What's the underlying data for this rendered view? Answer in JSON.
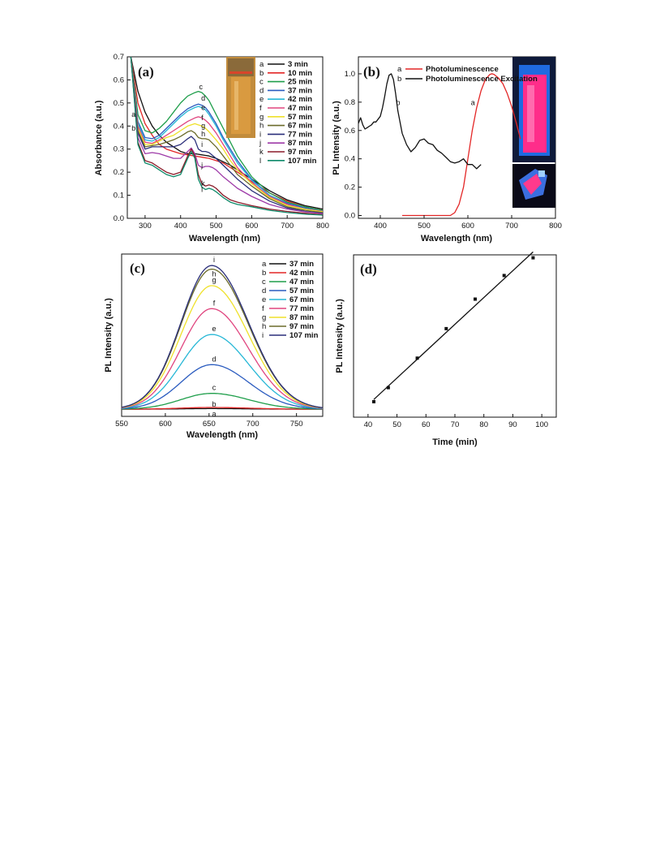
{
  "chart_data": [
    {
      "panel": "(a)",
      "type": "line",
      "xlabel": "Wavelength (nm)",
      "ylabel": "Absorbance (a.u.)",
      "xlim": [
        250,
        800
      ],
      "ylim": [
        0,
        0.7
      ],
      "xticks": [
        300,
        400,
        500,
        600,
        700,
        800
      ],
      "yticks": [
        0.0,
        0.1,
        0.2,
        0.3,
        0.4,
        0.5,
        0.6,
        0.7
      ],
      "legend_position": "top-right",
      "series": [
        {
          "letter": "a",
          "name": "3 min",
          "color": "#111111",
          "x": [
            260,
            280,
            300,
            320,
            340,
            360,
            380,
            400,
            420,
            440,
            460,
            480,
            500,
            520,
            540,
            560,
            600,
            650,
            700,
            750,
            800
          ],
          "y": [
            0.7,
            0.55,
            0.46,
            0.4,
            0.36,
            0.33,
            0.31,
            0.29,
            0.28,
            0.28,
            0.275,
            0.27,
            0.26,
            0.245,
            0.23,
            0.21,
            0.17,
            0.12,
            0.08,
            0.055,
            0.04
          ]
        },
        {
          "letter": "b",
          "name": "10 min",
          "color": "#e32626",
          "x": [
            260,
            280,
            300,
            320,
            340,
            360,
            380,
            400,
            420,
            440,
            460,
            480,
            500,
            520,
            540,
            560,
            600,
            650,
            700,
            750,
            800
          ],
          "y": [
            0.7,
            0.5,
            0.41,
            0.36,
            0.32,
            0.3,
            0.29,
            0.28,
            0.275,
            0.27,
            0.265,
            0.26,
            0.25,
            0.24,
            0.22,
            0.2,
            0.16,
            0.11,
            0.075,
            0.05,
            0.035
          ]
        },
        {
          "letter": "c",
          "name": "25 min",
          "color": "#1e9e4a",
          "x": [
            260,
            280,
            300,
            320,
            340,
            360,
            380,
            400,
            420,
            440,
            450,
            460,
            470,
            480,
            500,
            520,
            540,
            560,
            600,
            650,
            700,
            750,
            800
          ],
          "y": [
            0.7,
            0.45,
            0.38,
            0.37,
            0.39,
            0.42,
            0.46,
            0.5,
            0.53,
            0.545,
            0.55,
            0.545,
            0.53,
            0.51,
            0.45,
            0.39,
            0.33,
            0.27,
            0.18,
            0.11,
            0.07,
            0.05,
            0.035
          ]
        },
        {
          "letter": "d",
          "name": "37 min",
          "color": "#2a5bbf",
          "x": [
            260,
            280,
            300,
            320,
            340,
            360,
            380,
            400,
            420,
            440,
            450,
            460,
            470,
            480,
            500,
            520,
            540,
            560,
            600,
            650,
            700,
            750,
            800
          ],
          "y": [
            0.7,
            0.42,
            0.35,
            0.345,
            0.36,
            0.39,
            0.42,
            0.45,
            0.475,
            0.49,
            0.495,
            0.49,
            0.48,
            0.46,
            0.41,
            0.35,
            0.3,
            0.25,
            0.17,
            0.1,
            0.065,
            0.045,
            0.03
          ]
        },
        {
          "letter": "e",
          "name": "42 min",
          "color": "#26b7d6",
          "x": [
            260,
            280,
            300,
            320,
            340,
            360,
            380,
            400,
            420,
            440,
            450,
            460,
            470,
            480,
            500,
            520,
            540,
            560,
            600,
            650,
            700,
            750,
            800
          ],
          "y": [
            0.7,
            0.41,
            0.34,
            0.335,
            0.35,
            0.38,
            0.41,
            0.44,
            0.465,
            0.48,
            0.485,
            0.48,
            0.47,
            0.45,
            0.4,
            0.34,
            0.29,
            0.24,
            0.165,
            0.1,
            0.06,
            0.04,
            0.03
          ]
        },
        {
          "letter": "f",
          "name": "47 min",
          "color": "#e0457f",
          "x": [
            260,
            280,
            300,
            320,
            340,
            360,
            380,
            400,
            420,
            440,
            450,
            460,
            470,
            480,
            500,
            520,
            540,
            560,
            600,
            650,
            700,
            750,
            800
          ],
          "y": [
            0.7,
            0.4,
            0.33,
            0.325,
            0.34,
            0.36,
            0.38,
            0.4,
            0.42,
            0.435,
            0.44,
            0.435,
            0.425,
            0.41,
            0.37,
            0.32,
            0.27,
            0.22,
            0.155,
            0.095,
            0.06,
            0.04,
            0.03
          ]
        },
        {
          "letter": "g",
          "name": "57 min",
          "color": "#efe12a",
          "x": [
            260,
            280,
            300,
            320,
            340,
            360,
            380,
            400,
            420,
            440,
            450,
            460,
            470,
            480,
            500,
            520,
            540,
            560,
            600,
            650,
            700,
            750,
            800
          ],
          "y": [
            0.7,
            0.39,
            0.32,
            0.32,
            0.335,
            0.35,
            0.36,
            0.38,
            0.4,
            0.41,
            0.405,
            0.4,
            0.39,
            0.375,
            0.34,
            0.3,
            0.25,
            0.21,
            0.15,
            0.09,
            0.055,
            0.04,
            0.028
          ]
        },
        {
          "letter": "h",
          "name": "67 min",
          "color": "#6b6b2a",
          "x": [
            260,
            280,
            300,
            320,
            340,
            360,
            380,
            400,
            420,
            430,
            440,
            450,
            460,
            470,
            480,
            500,
            520,
            540,
            560,
            600,
            650,
            700,
            750,
            800
          ],
          "y": [
            0.7,
            0.38,
            0.31,
            0.315,
            0.32,
            0.33,
            0.34,
            0.355,
            0.375,
            0.38,
            0.37,
            0.35,
            0.345,
            0.345,
            0.34,
            0.31,
            0.27,
            0.23,
            0.19,
            0.14,
            0.085,
            0.05,
            0.035,
            0.025
          ]
        },
        {
          "letter": "i",
          "name": "77 min",
          "color": "#2b2f7a",
          "x": [
            260,
            280,
            300,
            320,
            340,
            360,
            380,
            400,
            420,
            430,
            440,
            450,
            460,
            470,
            480,
            500,
            520,
            540,
            560,
            600,
            650,
            700,
            750,
            800
          ],
          "y": [
            0.7,
            0.37,
            0.3,
            0.31,
            0.31,
            0.31,
            0.31,
            0.32,
            0.345,
            0.355,
            0.34,
            0.3,
            0.29,
            0.29,
            0.285,
            0.26,
            0.23,
            0.2,
            0.17,
            0.12,
            0.075,
            0.045,
            0.03,
            0.022
          ]
        },
        {
          "letter": "j",
          "name": "87 min",
          "color": "#9e3aa8",
          "x": [
            260,
            280,
            300,
            320,
            340,
            360,
            380,
            400,
            420,
            430,
            440,
            450,
            460,
            470,
            480,
            490,
            500,
            520,
            540,
            560,
            600,
            650,
            700,
            750,
            800
          ],
          "y": [
            0.7,
            0.35,
            0.28,
            0.285,
            0.28,
            0.27,
            0.26,
            0.26,
            0.29,
            0.305,
            0.28,
            0.23,
            0.22,
            0.225,
            0.225,
            0.22,
            0.21,
            0.18,
            0.155,
            0.13,
            0.095,
            0.06,
            0.04,
            0.028,
            0.02
          ]
        },
        {
          "letter": "k",
          "name": "97 min",
          "color": "#8c1c2a",
          "x": [
            260,
            280,
            300,
            320,
            340,
            360,
            380,
            400,
            420,
            430,
            440,
            450,
            460,
            470,
            480,
            490,
            500,
            520,
            540,
            560,
            600,
            650,
            700,
            750,
            800
          ],
          "y": [
            0.7,
            0.33,
            0.25,
            0.24,
            0.22,
            0.2,
            0.19,
            0.2,
            0.27,
            0.3,
            0.27,
            0.19,
            0.15,
            0.14,
            0.145,
            0.14,
            0.13,
            0.1,
            0.08,
            0.07,
            0.055,
            0.04,
            0.03,
            0.022,
            0.016
          ]
        },
        {
          "letter": "l",
          "name": "107 min",
          "color": "#0e8a6a",
          "x": [
            260,
            280,
            300,
            320,
            340,
            360,
            380,
            400,
            420,
            430,
            440,
            450,
            460,
            470,
            480,
            490,
            500,
            520,
            540,
            560,
            600,
            650,
            700,
            750,
            800
          ],
          "y": [
            0.7,
            0.32,
            0.24,
            0.23,
            0.21,
            0.19,
            0.18,
            0.19,
            0.26,
            0.29,
            0.26,
            0.17,
            0.135,
            0.125,
            0.13,
            0.125,
            0.115,
            0.09,
            0.07,
            0.06,
            0.05,
            0.035,
            0.025,
            0.018,
            0.014
          ]
        }
      ],
      "curve_labels": [
        {
          "letter": "a",
          "x": 262,
          "y": 0.44
        },
        {
          "letter": "b",
          "x": 262,
          "y": 0.38
        },
        {
          "letter": "c",
          "x": 452,
          "y": 0.56
        },
        {
          "letter": "d",
          "x": 458,
          "y": 0.51
        },
        {
          "letter": "e",
          "x": 458,
          "y": 0.47
        },
        {
          "letter": "f",
          "x": 458,
          "y": 0.425
        },
        {
          "letter": "g",
          "x": 458,
          "y": 0.39
        },
        {
          "letter": "h",
          "x": 458,
          "y": 0.355
        },
        {
          "letter": "i",
          "x": 458,
          "y": 0.31
        },
        {
          "letter": "j",
          "x": 458,
          "y": 0.22
        },
        {
          "letter": "k",
          "x": 458,
          "y": 0.14
        },
        {
          "letter": "l",
          "x": 458,
          "y": 0.115
        }
      ]
    },
    {
      "panel": "(b)",
      "type": "line",
      "xlabel": "Wavelength (nm)",
      "ylabel": "PL Intensity (a.u.)",
      "xlim": [
        350,
        800
      ],
      "ylim": [
        -0.02,
        1.12
      ],
      "xticks": [
        400,
        500,
        600,
        700,
        800
      ],
      "yticks": [
        0.0,
        0.2,
        0.4,
        0.6,
        0.8,
        1.0
      ],
      "legend_position": "top-right",
      "series": [
        {
          "letter": "a",
          "name": "Photoluminescence",
          "color": "#e32626",
          "x": [
            450,
            560,
            570,
            580,
            590,
            600,
            610,
            620,
            630,
            640,
            650,
            655,
            660,
            670,
            680,
            690,
            700,
            710,
            720
          ],
          "y": [
            0.0,
            0.0,
            0.02,
            0.08,
            0.2,
            0.4,
            0.6,
            0.76,
            0.88,
            0.96,
            0.995,
            1.0,
            0.995,
            0.97,
            0.93,
            0.86,
            0.77,
            0.66,
            0.54
          ]
        },
        {
          "letter": "b",
          "name": "Photoluminescence Excitation",
          "color": "#111111",
          "x": [
            350,
            355,
            360,
            365,
            370,
            375,
            380,
            385,
            390,
            395,
            400,
            405,
            410,
            415,
            420,
            425,
            430,
            435,
            440,
            445,
            450,
            460,
            470,
            480,
            490,
            500,
            510,
            520,
            530,
            540,
            550,
            560,
            570,
            580,
            590,
            600,
            610,
            620,
            630
          ],
          "y": [
            0.65,
            0.69,
            0.64,
            0.61,
            0.62,
            0.63,
            0.64,
            0.66,
            0.66,
            0.68,
            0.7,
            0.76,
            0.84,
            0.93,
            0.99,
            1.0,
            0.96,
            0.86,
            0.74,
            0.66,
            0.58,
            0.5,
            0.45,
            0.48,
            0.53,
            0.54,
            0.51,
            0.5,
            0.46,
            0.44,
            0.41,
            0.38,
            0.37,
            0.38,
            0.4,
            0.36,
            0.36,
            0.33,
            0.36
          ]
        }
      ],
      "curve_labels": [
        {
          "letter": "b",
          "x": 436,
          "y": 0.78
        },
        {
          "letter": "a",
          "x": 607,
          "y": 0.78
        }
      ]
    },
    {
      "panel": "(c)",
      "type": "line",
      "xlabel": "Wavelength (nm)",
      "ylabel": "PL Intensity (a.u.)",
      "xlim": [
        550,
        780
      ],
      "ylim": [
        -0.05,
        1.08
      ],
      "xticks": [
        550,
        600,
        650,
        700,
        750
      ],
      "yticks": [],
      "legend_position": "top-right",
      "series": [
        {
          "letter": "a",
          "name": "37 min",
          "color": "#111111",
          "peak": 0.004
        },
        {
          "letter": "b",
          "name": "42 min",
          "color": "#e32626",
          "peak": 0.012
        },
        {
          "letter": "c",
          "name": "47 min",
          "color": "#1e9e4a",
          "peak": 0.11
        },
        {
          "letter": "d",
          "name": "57 min",
          "color": "#2a5bbf",
          "peak": 0.31
        },
        {
          "letter": "e",
          "name": "67 min",
          "color": "#26b7d6",
          "peak": 0.52
        },
        {
          "letter": "f",
          "name": "77 min",
          "color": "#e0457f",
          "peak": 0.7
        },
        {
          "letter": "g",
          "name": "87 min",
          "color": "#efe12a",
          "peak": 0.86
        },
        {
          "letter": "h",
          "name": "97 min",
          "color": "#6b6b2a",
          "peak": 0.975
        },
        {
          "letter": "i",
          "name": "107 min",
          "color": "#2b2f7a",
          "peak": 1.0
        }
      ],
      "peak_center": 653,
      "left_sigma": 35,
      "right_sigma": 42
    },
    {
      "panel": "(d)",
      "type": "scatter",
      "xlabel": "Time (min)",
      "ylabel": "PL Intensity (a.u.)",
      "xlim": [
        35,
        105
      ],
      "ylim": [
        -0.1,
        1.0
      ],
      "xticks": [
        40,
        50,
        60,
        70,
        80,
        90,
        100
      ],
      "yticks": [],
      "points": {
        "x": [
          42,
          47,
          57,
          67,
          77,
          87,
          97
        ],
        "y": [
          0.005,
          0.1,
          0.3,
          0.5,
          0.7,
          0.86,
          0.98
        ]
      },
      "fit_line": {
        "x": [
          42,
          97
        ],
        "y": [
          0.02,
          1.02
        ]
      }
    }
  ]
}
